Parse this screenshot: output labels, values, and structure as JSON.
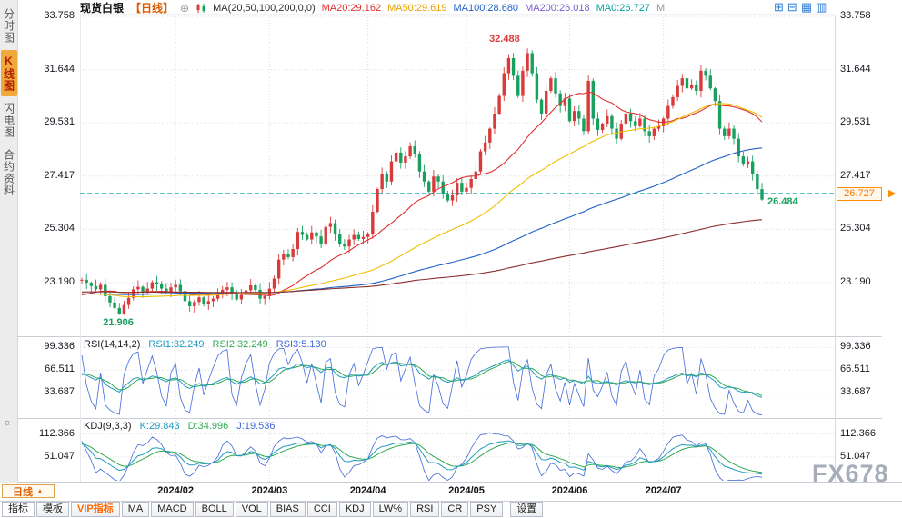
{
  "app": {
    "watermark": "FX678"
  },
  "sidebar": {
    "items": [
      {
        "label": "分时图",
        "active": false
      },
      {
        "label": "K线图",
        "active": true
      },
      {
        "label": "闪电图",
        "active": false
      },
      {
        "label": "合约资料",
        "active": false
      }
    ]
  },
  "icons": {
    "circle_plus": "⊕",
    "sun": "☼",
    "latest_arrow": "▶"
  },
  "header": {
    "symbol": "现货白银",
    "period_tag": "【日线】",
    "ma_title": "MA(20,50,100,200,0,0)",
    "ma_values": [
      {
        "label": "MA20:29.162",
        "color": "#e03030"
      },
      {
        "label": "MA50:29.619",
        "color": "#e8a000"
      },
      {
        "label": "MA100:28.680",
        "color": "#2060c8"
      },
      {
        "label": "MA200:26.018",
        "color": "#7a5cd0"
      },
      {
        "label": "MA0:26.727",
        "color": "#00a0a0"
      },
      {
        "label": "M",
        "color": "#999999"
      }
    ],
    "layout_icons": [
      {
        "name": "grid-2x2-icon",
        "glyph": "⊞"
      },
      {
        "name": "panel-split-icon",
        "glyph": "⊟"
      },
      {
        "name": "panel-grid-icon",
        "glyph": "▦"
      },
      {
        "name": "panel-right-icon",
        "glyph": "▥"
      }
    ]
  },
  "indicators": {
    "rsi": {
      "title": "RSI(14,14,2)",
      "values": [
        {
          "label": "RSI1:32.249",
          "color": "#1f9bbf"
        },
        {
          "label": "RSI2:32.249",
          "color": "#33a853"
        },
        {
          "label": "RSI3:5.130",
          "color": "#4169d8"
        }
      ]
    },
    "kdj": {
      "title": "KDJ(9,3,3)",
      "values": [
        {
          "label": "K:29.843",
          "color": "#1f9bbf"
        },
        {
          "label": "D:34.996",
          "color": "#33a853"
        },
        {
          "label": "J:19.536",
          "color": "#4169d8"
        }
      ]
    }
  },
  "annotations": {
    "high_label": "32.488",
    "low_label": "21.906",
    "last_label": "26.484",
    "price_tag": "26.727"
  },
  "bottom": {
    "period_button": "日线",
    "period_arrow": "▲",
    "tabs": [
      "指标",
      "模板",
      "VIP指标",
      "MA",
      "MACD",
      "BOLL",
      "VOL",
      "BIAS",
      "CCI",
      "KDJ",
      "LW%",
      "RSI",
      "CR",
      "PSY",
      "设置"
    ]
  },
  "chart_data": {
    "type": "candlestick",
    "title": "现货白银 日线 (Spot Silver, Daily)",
    "up_color": "#d93a3a",
    "down_color": "#18a05e",
    "current_line_color": "#00a0a0",
    "price_axis": {
      "min": 21.13,
      "max": 34.12,
      "labels": [
        "33.758",
        "31.644",
        "29.531",
        "27.417",
        "25.304",
        "23.190"
      ],
      "values": [
        33.758,
        31.644,
        29.531,
        27.417,
        25.304,
        23.19
      ]
    },
    "rsi_axis": {
      "min": 0,
      "max": 113,
      "labels": [
        "99.336",
        "66.511",
        "33.687"
      ],
      "values": [
        99.336,
        66.511,
        33.687
      ]
    },
    "kdj_axis": {
      "min": -10,
      "max": 150,
      "labels": [
        "112.366",
        "51.047"
      ],
      "values": [
        112.366,
        51.047
      ]
    },
    "months": [
      {
        "label": "2024/02",
        "index": 20
      },
      {
        "label": "2024/03",
        "index": 40
      },
      {
        "label": "2024/04",
        "index": 61
      },
      {
        "label": "2024/05",
        "index": 82
      },
      {
        "label": "2024/06",
        "index": 104
      },
      {
        "label": "2024/07",
        "index": 124
      }
    ],
    "extremes": {
      "high": 32.488,
      "low": 21.906,
      "last": 26.484,
      "current": 26.727
    },
    "ma_lines": [
      {
        "period": 20,
        "color": "#e03030",
        "current": 29.162
      },
      {
        "period": 50,
        "color": "#eec000",
        "current": 29.619
      },
      {
        "period": 100,
        "color": "#2060c8",
        "current": 28.68
      },
      {
        "period": 200,
        "color": "#8b2f2f",
        "current": 26.018
      }
    ],
    "rsi_periods": [
      14,
      14,
      2
    ],
    "rsi_current": [
      32.249,
      32.249,
      5.13
    ],
    "kdj_periods": [
      9,
      3,
      3
    ],
    "kdj_current": {
      "k": 29.843,
      "d": 34.996,
      "j": 19.536
    },
    "warmup": {
      "count": 120,
      "base": 22.8
    },
    "closes": [
      23.3,
      23.18,
      23.05,
      22.92,
      23.1,
      22.65,
      22.4,
      22.18,
      21.95,
      22.3,
      22.58,
      22.92,
      23.02,
      22.82,
      22.95,
      23.2,
      23.12,
      22.95,
      22.8,
      23.0,
      23.1,
      22.85,
      22.45,
      22.25,
      22.42,
      22.6,
      22.35,
      22.45,
      22.55,
      22.72,
      22.9,
      23.0,
      22.72,
      22.52,
      22.7,
      22.88,
      23.08,
      22.9,
      22.55,
      22.65,
      22.95,
      23.35,
      24.1,
      24.32,
      24.2,
      24.52,
      25.2,
      25.08,
      24.9,
      25.18,
      25.02,
      24.72,
      25.4,
      25.55,
      25.1,
      24.72,
      24.62,
      24.9,
      25.08,
      24.92,
      25.0,
      25.12,
      26.0,
      26.9,
      27.5,
      27.2,
      28.0,
      28.35,
      27.95,
      28.2,
      28.6,
      28.3,
      27.6,
      27.2,
      26.8,
      27.4,
      27.2,
      26.7,
      26.45,
      26.65,
      27.15,
      26.8,
      26.95,
      27.3,
      27.6,
      28.4,
      28.75,
      29.3,
      29.9,
      30.6,
      31.5,
      32.1,
      31.4,
      30.6,
      31.6,
      32.3,
      31.5,
      30.45,
      29.9,
      30.8,
      31.3,
      30.7,
      30.2,
      30.5,
      29.6,
      30.0,
      29.7,
      29.2,
      31.2,
      29.7,
      29.25,
      29.5,
      29.8,
      29.3,
      28.9,
      29.5,
      29.9,
      29.6,
      29.4,
      29.7,
      29.2,
      29.0,
      29.3,
      29.4,
      29.7,
      30.2,
      30.55,
      31.0,
      31.3,
      30.9,
      31.05,
      30.8,
      31.6,
      31.4,
      30.9,
      30.4,
      29.3,
      29.0,
      29.3,
      28.9,
      28.2,
      27.9,
      28.0,
      27.5,
      26.9,
      26.484
    ]
  }
}
